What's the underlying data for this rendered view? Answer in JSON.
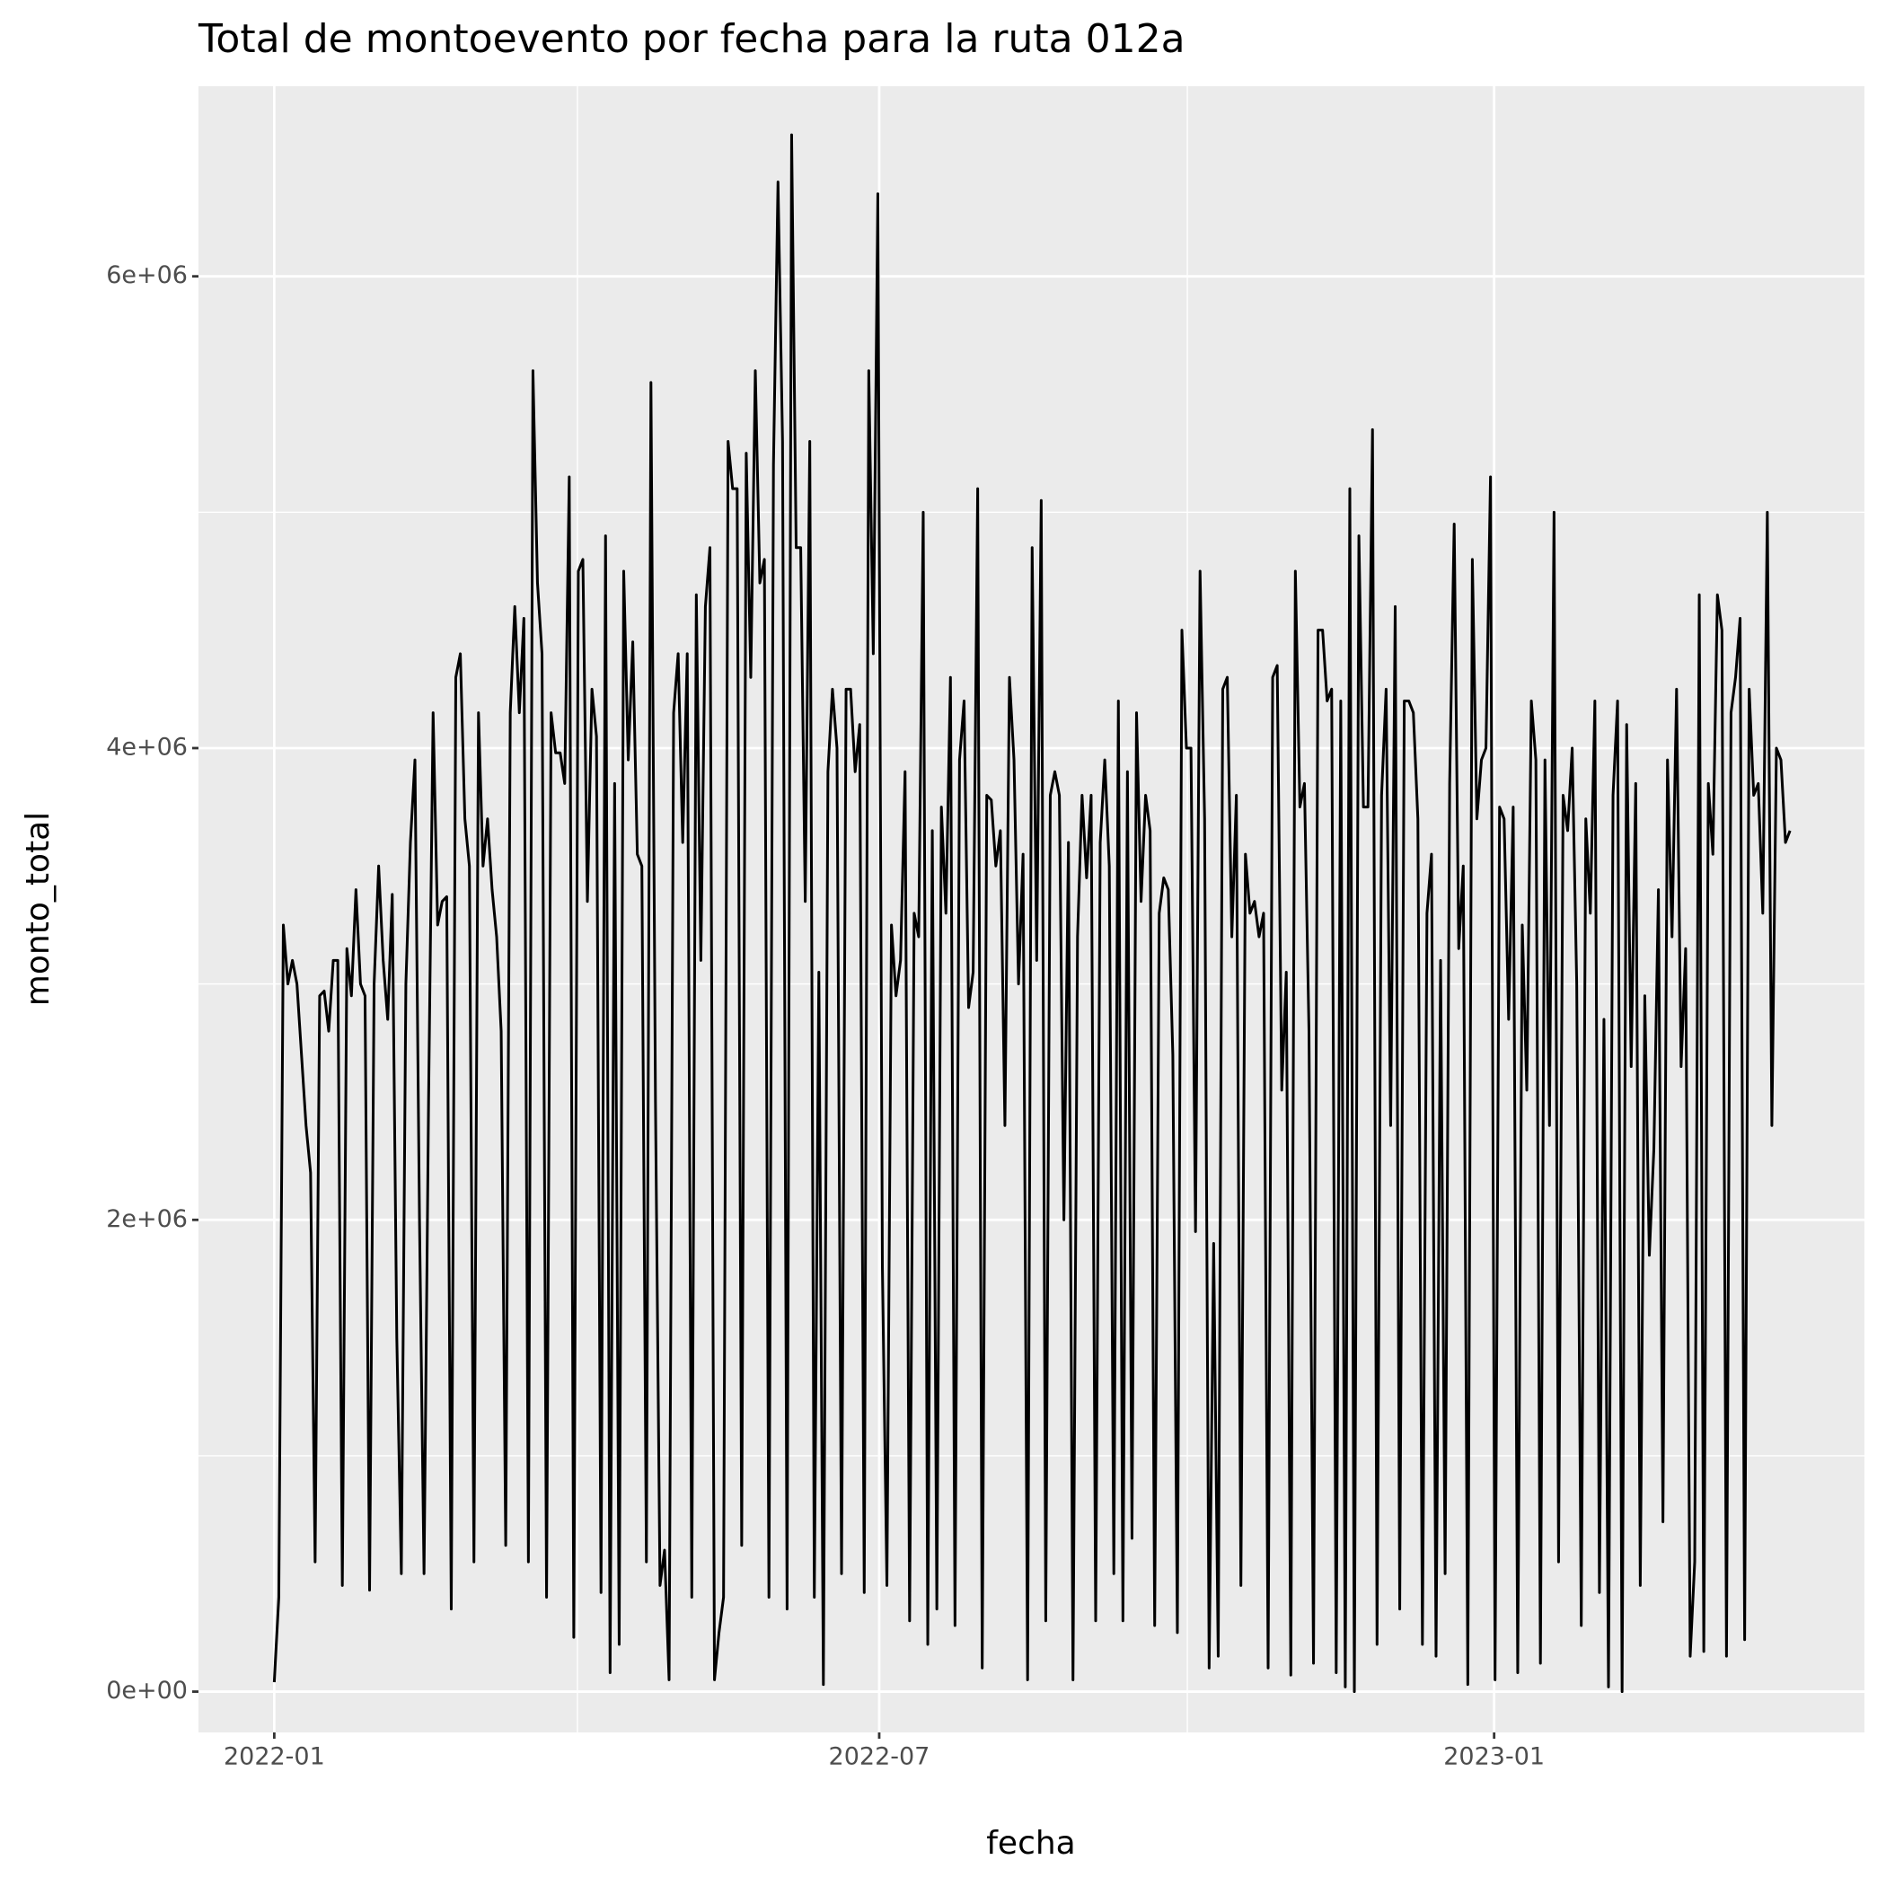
{
  "chart_data": {
    "type": "line",
    "title": "Total de montoevento por fecha para la ruta 012a",
    "x_label": "fecha",
    "y_label": "monto_total",
    "color": "#000000",
    "grid": true,
    "xlim": [
      -16.7,
      350.4
    ],
    "xticks": [
      {
        "value": 0,
        "label": "2022-01"
      },
      {
        "value": 133.3,
        "label": "2022-07"
      },
      {
        "value": 268.8,
        "label": "2023-01"
      }
    ],
    "x_minor_ticks": [
      66.8,
      201.2
    ],
    "ylim": [
      -173000,
      6806000
    ],
    "yticks": [
      {
        "value": 0,
        "label": "0e+00"
      },
      {
        "value": 2000000,
        "label": "2e+06"
      },
      {
        "value": 4000000,
        "label": "4e+06"
      },
      {
        "value": 6000000,
        "label": "6e+06"
      }
    ],
    "y_minor_ticks": [
      1000000,
      3000000,
      5000000
    ],
    "x": [
      0,
      1,
      2,
      3,
      4,
      5,
      6,
      7,
      8,
      9,
      10,
      11,
      12,
      13,
      14,
      15,
      16,
      17,
      18,
      19,
      20,
      21,
      22,
      23,
      24,
      25,
      26,
      27,
      28,
      29,
      30,
      31,
      32,
      33,
      34,
      35,
      36,
      37,
      38,
      39,
      40,
      41,
      42,
      43,
      44,
      45,
      46,
      47,
      48,
      49,
      50,
      51,
      52,
      53,
      54,
      55,
      56,
      57,
      58,
      59,
      60,
      61,
      62,
      63,
      64,
      65,
      66,
      67,
      68,
      69,
      70,
      71,
      72,
      73,
      74,
      75,
      76,
      77,
      78,
      79,
      80,
      81,
      82,
      83,
      84,
      85,
      86,
      87,
      88,
      89,
      90,
      91,
      92,
      93,
      94,
      95,
      96,
      97,
      98,
      99,
      100,
      101,
      102,
      103,
      104,
      105,
      106,
      107,
      108,
      109,
      110,
      111,
      112,
      113,
      114,
      115,
      116,
      117,
      118,
      119,
      120,
      121,
      122,
      123,
      124,
      125,
      126,
      127,
      128,
      129,
      130,
      131,
      132,
      133,
      134,
      135,
      136,
      137,
      138,
      139,
      140,
      141,
      142,
      143,
      144,
      145,
      146,
      147,
      148,
      149,
      150,
      151,
      152,
      153,
      154,
      155,
      156,
      157,
      158,
      159,
      160,
      161,
      162,
      163,
      164,
      165,
      166,
      167,
      168,
      169,
      170,
      171,
      172,
      173,
      174,
      175,
      176,
      177,
      178,
      179,
      180,
      181,
      182,
      183,
      184,
      185,
      186,
      187,
      188,
      189,
      190,
      191,
      192,
      193,
      194,
      195,
      196,
      197,
      198,
      199,
      200,
      201,
      202,
      203,
      204,
      205,
      206,
      207,
      208,
      209,
      210,
      211,
      212,
      213,
      214,
      215,
      216,
      217,
      218,
      219,
      220,
      221,
      222,
      223,
      224,
      225,
      226,
      227,
      228,
      229,
      230,
      231,
      232,
      233,
      234,
      235,
      236,
      237,
      238,
      239,
      240,
      241,
      242,
      243,
      244,
      245,
      246,
      247,
      248,
      249,
      250,
      251,
      252,
      253,
      254,
      255,
      256,
      257,
      258,
      259,
      260,
      261,
      262,
      263,
      264,
      265,
      266,
      267,
      268,
      269,
      270,
      271,
      272,
      273,
      274,
      275,
      276,
      277,
      278,
      279,
      280,
      281,
      282,
      283,
      284,
      285,
      286,
      287,
      288,
      289,
      290,
      291,
      292,
      293,
      294,
      295,
      296,
      297,
      298,
      299,
      300,
      301,
      302,
      303,
      304,
      305,
      306,
      307,
      308,
      309,
      310,
      311,
      312,
      313,
      314,
      315,
      316,
      317,
      318,
      319,
      320,
      321,
      322,
      323,
      324,
      325,
      326,
      327,
      328,
      329,
      330,
      331,
      332,
      333,
      334
    ],
    "values": [
      40000,
      400000,
      3250000,
      3000000,
      3100000,
      3000000,
      2700000,
      2400000,
      2200000,
      550000,
      2950000,
      2970000,
      2800000,
      3100000,
      3100000,
      450000,
      3150000,
      2950000,
      3400000,
      3000000,
      2950000,
      430000,
      3000000,
      3500000,
      3100000,
      2850000,
      3380000,
      1500000,
      500000,
      3000000,
      3600000,
      3950000,
      2000000,
      500000,
      2500000,
      4150000,
      3250000,
      3350000,
      3370000,
      350000,
      4300000,
      4400000,
      3700000,
      3500000,
      550000,
      4150000,
      3500000,
      3700000,
      3400000,
      3200000,
      2800000,
      620000,
      4150000,
      4600000,
      4150000,
      4550000,
      550000,
      5600000,
      4700000,
      4400000,
      400000,
      4150000,
      3980000,
      3980000,
      3850000,
      5150000,
      230000,
      4750000,
      4800000,
      3350000,
      4250000,
      4050000,
      420000,
      4900000,
      80000,
      3850000,
      200000,
      4750000,
      3950000,
      4450000,
      3550000,
      3500000,
      550000,
      5550000,
      2500000,
      450000,
      600000,
      50000,
      4150000,
      4400000,
      3600000,
      4400000,
      400000,
      4650000,
      3100000,
      4600000,
      4850000,
      50000,
      250000,
      400000,
      5300000,
      5100000,
      5100000,
      620000,
      5250000,
      4300000,
      5600000,
      4700000,
      4800000,
      400000,
      5200000,
      6400000,
      5300000,
      350000,
      6600000,
      4850000,
      4850000,
      3350000,
      5300000,
      400000,
      3050000,
      30000,
      3900000,
      4250000,
      4000000,
      500000,
      4250000,
      4250000,
      3900000,
      4100000,
      420000,
      5600000,
      4400000,
      6350000,
      1800000,
      450000,
      3250000,
      2950000,
      3100000,
      3900000,
      300000,
      3300000,
      3200000,
      5000000,
      200000,
      3650000,
      350000,
      3750000,
      3300000,
      4300000,
      280000,
      3950000,
      4200000,
      2900000,
      3050000,
      5100000,
      100000,
      3800000,
      3780000,
      3500000,
      3650000,
      2400000,
      4300000,
      3950000,
      3000000,
      3550000,
      50000,
      4850000,
      3100000,
      5050000,
      300000,
      3800000,
      3900000,
      3800000,
      2000000,
      3600000,
      50000,
      3200000,
      3800000,
      3450000,
      3800000,
      300000,
      3600000,
      3950000,
      3500000,
      500000,
      4200000,
      300000,
      3900000,
      650000,
      4150000,
      3350000,
      3800000,
      3650000,
      280000,
      3300000,
      3450000,
      3400000,
      2700000,
      250000,
      4500000,
      4000000,
      4000000,
      1950000,
      4750000,
      3700000,
      100000,
      1900000,
      150000,
      4250000,
      4300000,
      3200000,
      3800000,
      450000,
      3550000,
      3300000,
      3350000,
      3200000,
      3300000,
      100000,
      4300000,
      4350000,
      2550000,
      3050000,
      70000,
      4750000,
      3750000,
      3850000,
      2800000,
      120000,
      4500000,
      4500000,
      4200000,
      4250000,
      80000,
      4200000,
      20000,
      5100000,
      0,
      4900000,
      3750000,
      3750000,
      5350000,
      200000,
      3800000,
      4250000,
      2400000,
      4600000,
      350000,
      4200000,
      4200000,
      4150000,
      3700000,
      200000,
      3300000,
      3550000,
      150000,
      3100000,
      500000,
      3850000,
      4950000,
      3150000,
      3500000,
      30000,
      4800000,
      3700000,
      3950000,
      4000000,
      5150000,
      50000,
      3750000,
      3700000,
      2850000,
      3750000,
      80000,
      3250000,
      2550000,
      4200000,
      3950000,
      120000,
      3950000,
      2400000,
      5000000,
      550000,
      3800000,
      3650000,
      4000000,
      3000000,
      280000,
      3700000,
      3300000,
      4200000,
      420000,
      2850000,
      20000,
      3800000,
      4200000,
      0,
      4100000,
      2650000,
      3850000,
      450000,
      2950000,
      1850000,
      2300000,
      3400000,
      720000,
      3950000,
      3200000,
      4250000,
      2650000,
      3150000,
      150000,
      550000,
      4650000,
      170000,
      3850000,
      3550000,
      4650000,
      4500000,
      150000,
      4150000,
      4300000,
      4550000,
      220000,
      4250000,
      3800000,
      3850000,
      3300000,
      5000000,
      2400000,
      4000000,
      3950000,
      3600000,
      3650000
    ]
  }
}
